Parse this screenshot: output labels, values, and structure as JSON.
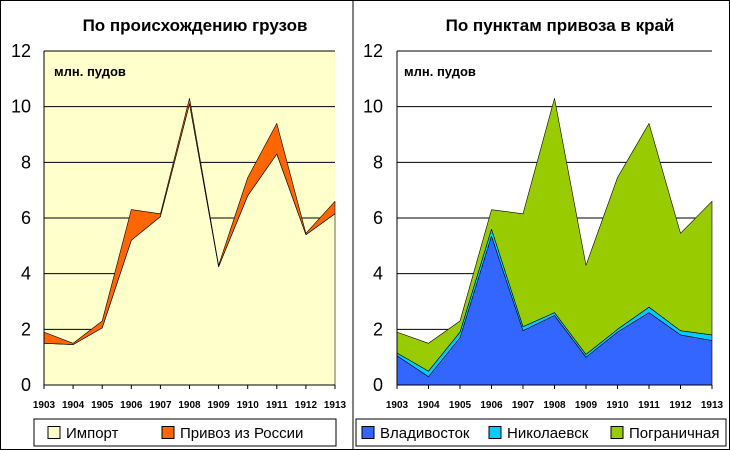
{
  "chart_data": [
    {
      "type": "area",
      "stacked": true,
      "title": "По происхождению грузов",
      "unit_label": "млн. пудов",
      "ylim": [
        0,
        12
      ],
      "yticks": [
        0,
        2,
        4,
        6,
        8,
        10,
        12
      ],
      "x": [
        "1903",
        "1904",
        "1905",
        "1906",
        "1907",
        "1908",
        "1909",
        "1910",
        "1911",
        "1912",
        "1913"
      ],
      "series": [
        {
          "name": "Импорт",
          "color": "#ffffcc",
          "values": [
            1.5,
            1.45,
            2.05,
            5.2,
            6.05,
            10.1,
            4.25,
            6.8,
            8.3,
            5.4,
            6.15
          ]
        },
        {
          "name": "Привоз из России",
          "color": "#ff6600",
          "values": [
            0.4,
            0.05,
            0.25,
            1.1,
            0.1,
            0.2,
            0.05,
            0.65,
            1.1,
            0.05,
            0.45
          ]
        }
      ],
      "plot_background": "#ffffcc",
      "legend_position": "bottom"
    },
    {
      "type": "area",
      "stacked": true,
      "title": "По пунктам привоза в край",
      "unit_label": "млн. пудов",
      "ylim": [
        0,
        12
      ],
      "yticks": [
        0,
        2,
        4,
        6,
        8,
        10,
        12
      ],
      "x": [
        "1903",
        "1904",
        "1905",
        "1906",
        "1907",
        "1908",
        "1909",
        "1910",
        "1911",
        "1912",
        "1913"
      ],
      "series": [
        {
          "name": "Владивосток",
          "color": "#3366ff",
          "values": [
            1.05,
            0.3,
            1.7,
            5.35,
            1.95,
            2.5,
            1.0,
            1.9,
            2.6,
            1.8,
            1.6
          ]
        },
        {
          "name": "Николаевск",
          "color": "#00ccff",
          "values": [
            0.1,
            0.2,
            0.2,
            0.25,
            0.15,
            0.1,
            0.1,
            0.1,
            0.2,
            0.15,
            0.2
          ]
        },
        {
          "name": "Пограничная",
          "color": "#99cc00",
          "values": [
            0.75,
            1.0,
            0.4,
            0.7,
            4.05,
            7.7,
            3.2,
            5.45,
            6.6,
            3.5,
            4.8
          ]
        }
      ],
      "plot_background": "#ffffff",
      "legend_position": "bottom"
    }
  ]
}
